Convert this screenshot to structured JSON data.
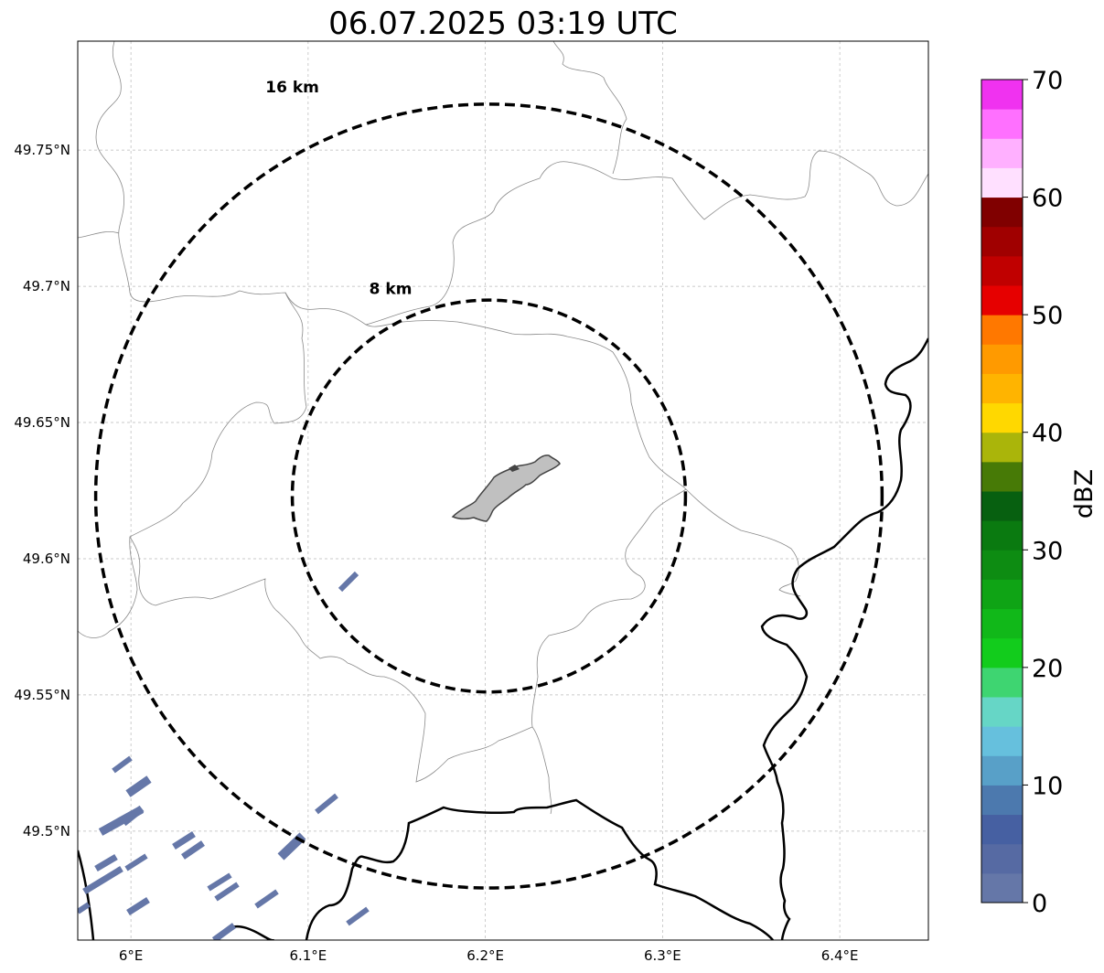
{
  "title": "06.07.2025 03:19 UTC",
  "map": {
    "lon_range": [
      5.97,
      6.45
    ],
    "lat_range": [
      49.46,
      49.79
    ],
    "lon_ticks": [
      {
        "value": 6.0,
        "label": "6°E"
      },
      {
        "value": 6.1,
        "label": "6.1°E"
      },
      {
        "value": 6.2,
        "label": "6.2°E"
      },
      {
        "value": 6.3,
        "label": "6.3°E"
      },
      {
        "value": 6.4,
        "label": "6.4°E"
      }
    ],
    "lat_ticks": [
      {
        "value": 49.75,
        "label": "49.75°N"
      },
      {
        "value": 49.7,
        "label": "49.7°N"
      },
      {
        "value": 49.65,
        "label": "49.65°N"
      },
      {
        "value": 49.6,
        "label": "49.6°N"
      },
      {
        "value": 49.55,
        "label": "49.55°N"
      },
      {
        "value": 49.5,
        "label": "49.5°N"
      }
    ],
    "gridlines": true,
    "radar_center": {
      "lon": 6.202,
      "lat": 49.623
    },
    "range_rings": [
      {
        "label": "8 km",
        "radius_km": 8
      },
      {
        "label": "16 km",
        "radius_km": 16
      }
    ]
  },
  "colorbar": {
    "label": "dBZ",
    "min": 0,
    "max": 70,
    "ticks": [
      {
        "value": 0,
        "label": "0"
      },
      {
        "value": 10,
        "label": "10"
      },
      {
        "value": 20,
        "label": "20"
      },
      {
        "value": 30,
        "label": "30"
      },
      {
        "value": 40,
        "label": "40"
      },
      {
        "value": 50,
        "label": "50"
      },
      {
        "value": 60,
        "label": "60"
      },
      {
        "value": 70,
        "label": "70"
      }
    ],
    "colors": [
      "#6577a8",
      "#566aa3",
      "#4660a2",
      "#4c79ae",
      "#58a0c8",
      "#66c0dd",
      "#66d6c6",
      "#3ed571",
      "#12cc1c",
      "#11b819",
      "#0fa415",
      "#0d8c12",
      "#0a7a10",
      "#076010",
      "#477a06",
      "#aab50a",
      "#ffd800",
      "#ffb400",
      "#ff9a00",
      "#ff7800",
      "#e60000",
      "#c00000",
      "#a00000",
      "#800000",
      "#ffe0ff",
      "#ffb0ff",
      "#ff70ff",
      "#f032f0"
    ]
  },
  "echo_color": "#6577a8"
}
